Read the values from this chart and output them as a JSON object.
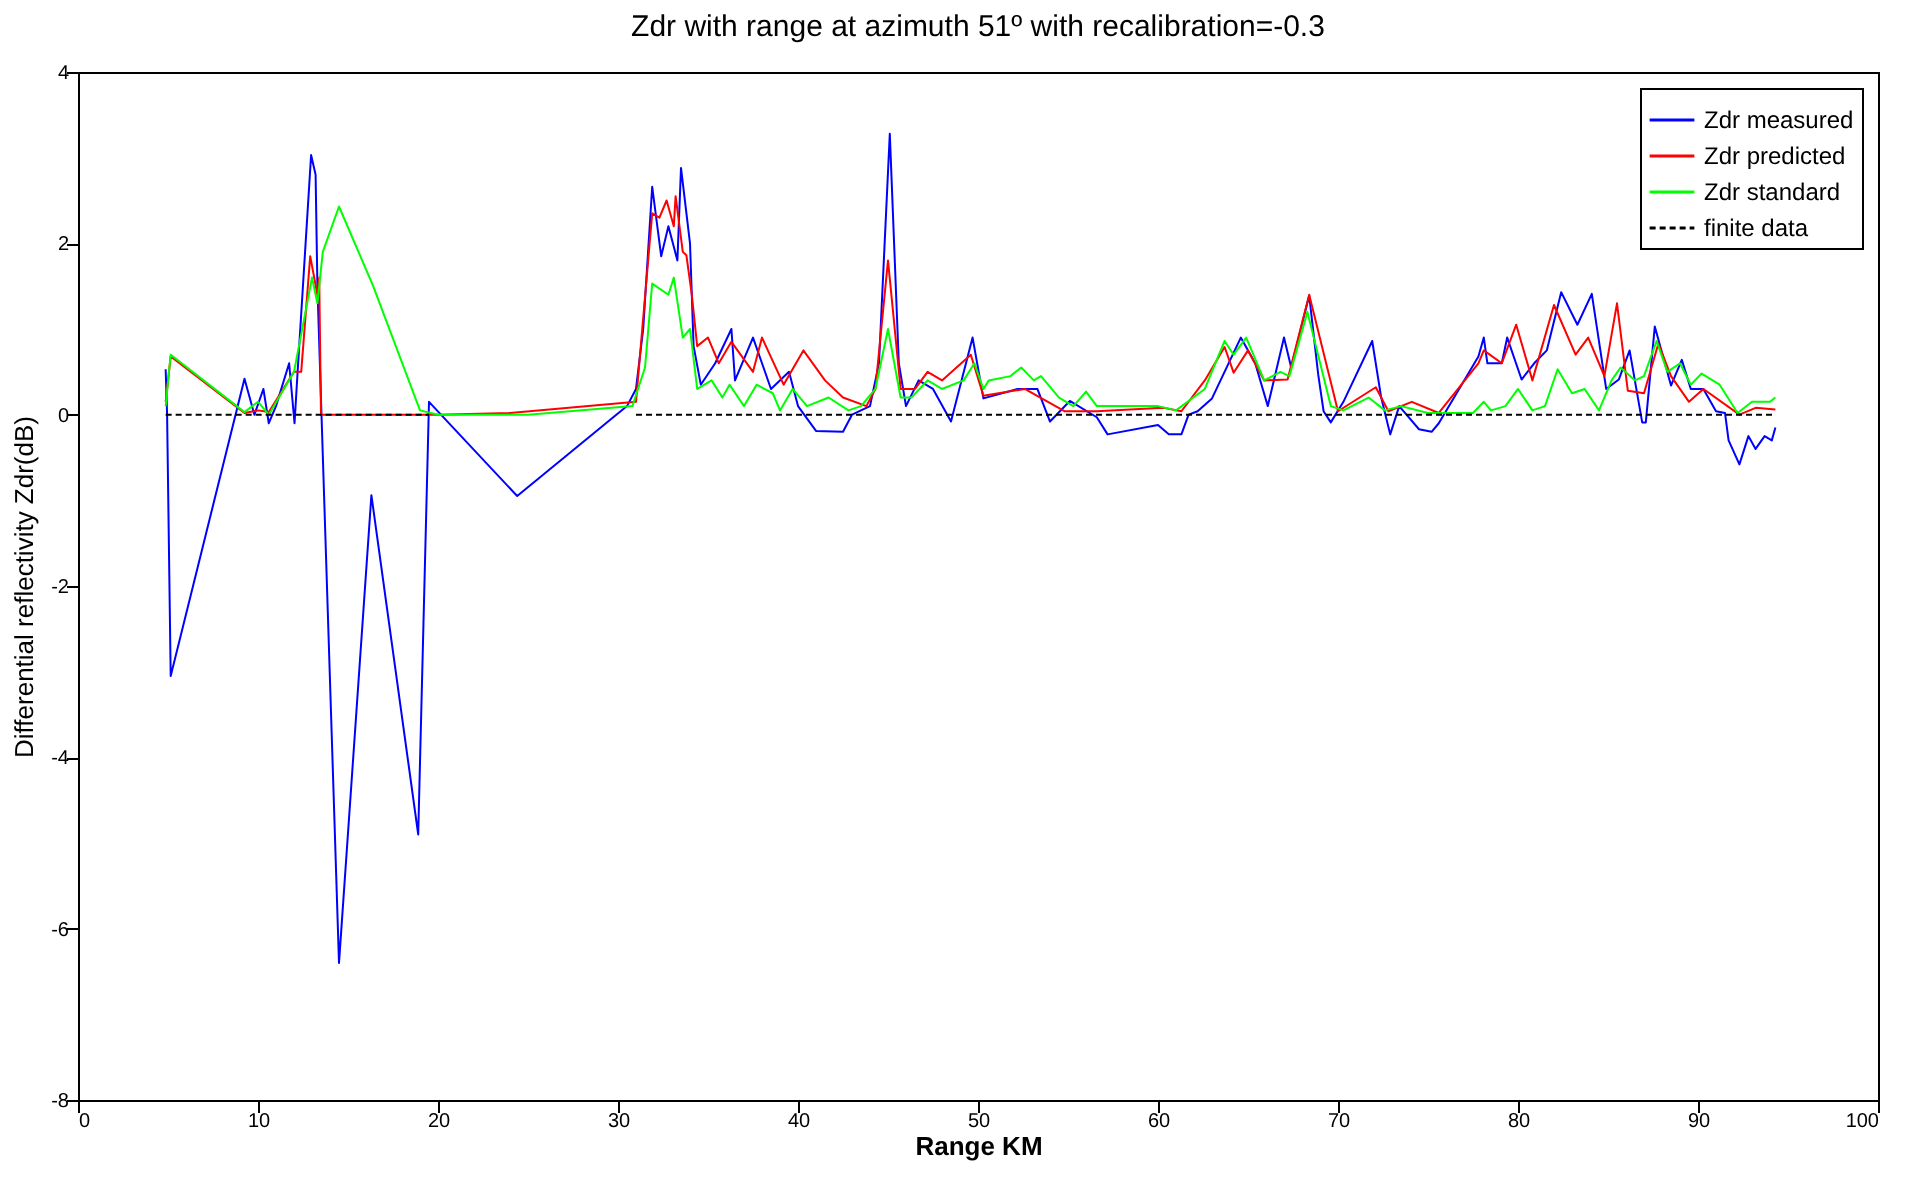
{
  "chart_data": {
    "type": "line",
    "title": "Zdr with range at azimuth 51º with recalibration=-0.3",
    "xlabel": "Range KM",
    "ylabel": "Differential reflectivity Zdr(dB)",
    "xlim": [
      0,
      100
    ],
    "xticks": [
      0,
      10,
      20,
      30,
      40,
      50,
      60,
      70,
      80,
      90,
      100
    ],
    "ylim": [
      -8,
      4
    ],
    "yticks": [
      -8,
      -6,
      -4,
      -2,
      0,
      2,
      4
    ],
    "grid": false,
    "legend": "top right",
    "marker": "none",
    "series": [
      {
        "name": "Zdr measured",
        "color": "#0000ff",
        "line_style": "solid",
        "x": [
          4.87,
          4.95,
          5.15,
          9.25,
          9.8,
          10.3,
          10.6,
          11.0,
          11.73,
          12.03,
          12.2,
          12.95,
          13.2,
          13.3,
          14.5,
          16.3,
          18.9,
          19.5,
          24.4,
          30.5,
          31.0,
          31.4,
          31.9,
          32.4,
          32.8,
          33.3,
          33.5,
          34.0,
          34.2,
          34.6,
          35.4,
          36.3,
          36.5,
          37.5,
          38.0,
          38.5,
          39.5,
          40.0,
          41.0,
          42.5,
          43.0,
          44.0,
          44.5,
          45.1,
          45.6,
          46.0,
          46.7,
          47.5,
          48.5,
          49.7,
          50.3,
          52.2,
          53.3,
          54.0,
          55.1,
          56.6,
          57.2,
          60.0,
          60.6,
          61.3,
          61.7,
          62.2,
          63.0,
          64.6,
          65.4,
          66.1,
          67.0,
          67.4,
          68.4,
          68.9,
          69.2,
          69.6,
          70.3,
          71.9,
          72.4,
          72.9,
          73.4,
          74.5,
          75.2,
          75.6,
          77.8,
          78.1,
          78.3,
          79.1,
          79.4,
          80.2,
          80.9,
          81.6,
          82.4,
          83.3,
          84.1,
          84.9,
          85.6,
          86.2,
          86.9,
          87.1,
          87.6,
          88.5,
          89.1,
          89.6,
          90.3,
          91.0,
          91.5,
          91.7,
          92.3,
          92.8,
          93.2,
          93.7,
          94.1,
          94.3
        ],
        "values": [
          0.53,
          0.0,
          -3.05,
          0.42,
          0.0,
          0.3,
          -0.1,
          0.1,
          0.6,
          -0.1,
          0.5,
          3.03,
          2.8,
          1.5,
          -6.4,
          -0.94,
          -4.9,
          0.15,
          -0.95,
          0.1,
          0.3,
          1.0,
          2.66,
          1.85,
          2.2,
          1.8,
          2.88,
          2.0,
          0.8,
          0.35,
          0.6,
          1.0,
          0.4,
          0.9,
          0.6,
          0.3,
          0.5,
          0.1,
          -0.19,
          -0.2,
          0.0,
          0.1,
          0.6,
          3.28,
          0.6,
          0.1,
          0.4,
          0.3,
          -0.08,
          0.9,
          0.19,
          0.3,
          0.3,
          -0.08,
          0.16,
          -0.03,
          -0.23,
          -0.12,
          -0.23,
          -0.23,
          0.0,
          0.04,
          0.19,
          0.9,
          0.6,
          0.1,
          0.9,
          0.55,
          1.39,
          0.47,
          0.04,
          -0.09,
          0.15,
          0.86,
          0.2,
          -0.23,
          0.1,
          -0.17,
          -0.2,
          -0.1,
          0.68,
          0.9,
          0.6,
          0.6,
          0.9,
          0.41,
          0.6,
          0.75,
          1.43,
          1.05,
          1.41,
          0.3,
          0.41,
          0.75,
          -0.09,
          -0.09,
          1.03,
          0.34,
          0.64,
          0.3,
          0.3,
          0.04,
          0.02,
          -0.3,
          -0.58,
          -0.25,
          -0.4,
          -0.25,
          -0.3,
          -0.15
        ]
      },
      {
        "name": "Zdr predicted",
        "color": "#ff0000",
        "line_style": "solid",
        "x": [
          4.87,
          5.15,
          9.25,
          10.0,
          10.6,
          12.0,
          12.4,
          12.9,
          13.3,
          13.4,
          13.5,
          20.0,
          24.0,
          31.0,
          31.9,
          32.3,
          32.7,
          33.1,
          33.2,
          33.6,
          33.8,
          34.1,
          34.4,
          35.0,
          35.6,
          36.3,
          37.5,
          38.0,
          39.2,
          40.3,
          41.5,
          42.5,
          43.8,
          44.3,
          45.0,
          45.7,
          46.5,
          47.2,
          48.0,
          49.6,
          50.3,
          52.6,
          54.8,
          56.6,
          60.3,
          61.3,
          62.6,
          63.7,
          64.2,
          65.0,
          65.9,
          67.2,
          68.4,
          70.0,
          72.1,
          72.8,
          74.1,
          75.6,
          77.8,
          78.1,
          79.1,
          79.9,
          80.8,
          82.0,
          83.2,
          83.9,
          84.8,
          85.5,
          86.1,
          87.0,
          87.8,
          88.5,
          89.5,
          90.3,
          92.3,
          93.2,
          94.3
        ],
        "values": [
          0.15,
          0.68,
          0.02,
          0.05,
          0.03,
          0.5,
          0.5,
          1.85,
          1.4,
          1.6,
          0.0,
          0.0,
          0.02,
          0.15,
          2.35,
          2.3,
          2.5,
          2.2,
          2.55,
          1.9,
          1.86,
          1.4,
          0.8,
          0.9,
          0.6,
          0.85,
          0.5,
          0.9,
          0.35,
          0.75,
          0.4,
          0.2,
          0.1,
          0.3,
          1.8,
          0.3,
          0.3,
          0.5,
          0.4,
          0.7,
          0.22,
          0.3,
          0.04,
          0.04,
          0.08,
          0.04,
          0.4,
          0.79,
          0.49,
          0.75,
          0.4,
          0.41,
          1.4,
          0.04,
          0.32,
          0.04,
          0.15,
          0.02,
          0.6,
          0.75,
          0.6,
          1.05,
          0.4,
          1.28,
          0.7,
          0.9,
          0.45,
          1.3,
          0.28,
          0.25,
          0.83,
          0.45,
          0.15,
          0.3,
          0.0,
          0.08,
          0.06
        ]
      },
      {
        "name": "Zdr standard",
        "color": "#00ff00",
        "line_style": "solid",
        "x": [
          4.87,
          5.15,
          9.25,
          10.0,
          10.6,
          12.0,
          13.0,
          13.3,
          13.6,
          14.5,
          16.4,
          19.0,
          20.0,
          25.0,
          30.8,
          31.5,
          31.9,
          32.8,
          33.1,
          33.6,
          34.0,
          34.4,
          35.2,
          35.8,
          36.2,
          37.0,
          37.7,
          38.6,
          39.0,
          39.7,
          40.5,
          41.7,
          42.8,
          43.5,
          44.3,
          45.0,
          45.7,
          46.3,
          47.2,
          48.0,
          49.2,
          49.8,
          50.3,
          50.6,
          51.8,
          52.4,
          53.1,
          53.5,
          54.5,
          55.3,
          56.0,
          56.6,
          60.0,
          61.0,
          62.6,
          63.7,
          64.2,
          64.9,
          65.9,
          66.8,
          67.3,
          68.3,
          69.6,
          70.3,
          71.7,
          72.6,
          73.5,
          75.0,
          77.5,
          78.1,
          78.5,
          79.3,
          80.0,
          80.8,
          81.5,
          82.2,
          83.0,
          83.7,
          84.5,
          85.2,
          85.7,
          86.5,
          87.0,
          87.7,
          88.3,
          89.0,
          89.6,
          90.2,
          91.2,
          92.2,
          93.0,
          94.0,
          94.3
        ],
        "values": [
          0.1,
          0.7,
          0.03,
          0.15,
          0.0,
          0.5,
          1.6,
          1.3,
          1.9,
          2.43,
          1.5,
          0.05,
          0.0,
          0.0,
          0.1,
          0.55,
          1.53,
          1.4,
          1.6,
          0.9,
          1.0,
          0.3,
          0.4,
          0.2,
          0.35,
          0.1,
          0.35,
          0.25,
          0.05,
          0.3,
          0.1,
          0.2,
          0.05,
          0.1,
          0.3,
          1.0,
          0.2,
          0.2,
          0.4,
          0.3,
          0.4,
          0.6,
          0.3,
          0.4,
          0.45,
          0.55,
          0.4,
          0.45,
          0.2,
          0.1,
          0.27,
          0.1,
          0.1,
          0.05,
          0.3,
          0.86,
          0.7,
          0.9,
          0.4,
          0.5,
          0.45,
          1.2,
          0.1,
          0.05,
          0.2,
          0.05,
          0.1,
          0.02,
          0.02,
          0.15,
          0.05,
          0.1,
          0.3,
          0.05,
          0.1,
          0.53,
          0.25,
          0.3,
          0.05,
          0.4,
          0.55,
          0.4,
          0.45,
          0.86,
          0.5,
          0.6,
          0.35,
          0.48,
          0.35,
          0.02,
          0.15,
          0.15,
          0.2
        ]
      },
      {
        "name": "finite data",
        "color": "#000000",
        "line_style": "dashed",
        "x": [
          4.87,
          19.5,
          25.0,
          31.0,
          94.3
        ],
        "values": [
          0,
          0,
          null,
          0,
          0
        ]
      }
    ]
  }
}
